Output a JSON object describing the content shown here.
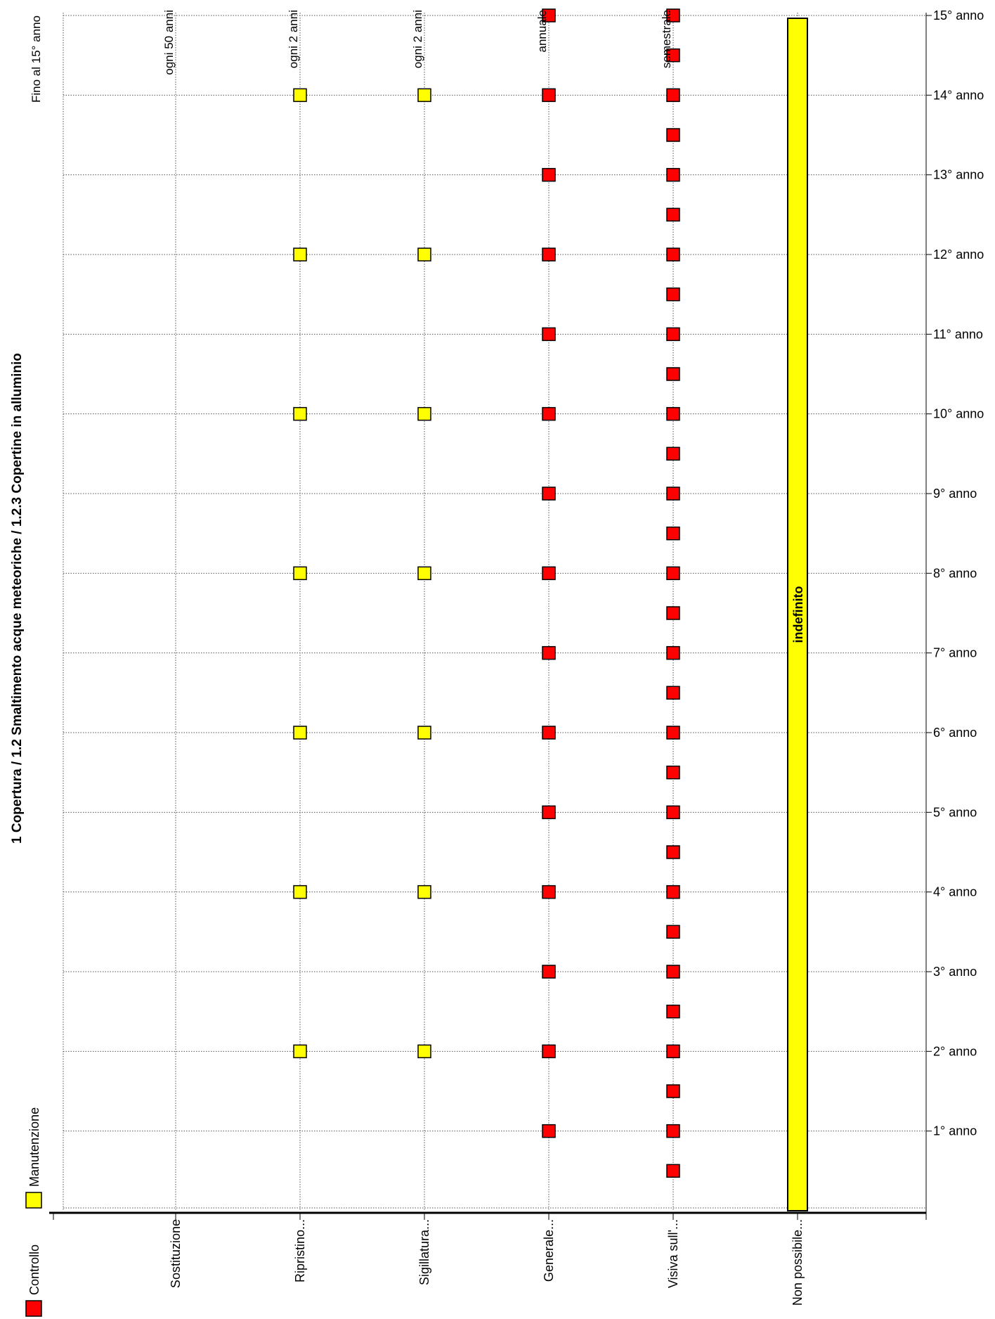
{
  "chart_data": {
    "type": "scatter",
    "orientation": "rotated-90",
    "title": "1 Copertura / 1.2 Smaltimento acque meteoriche / 1.2.3 Copertine in alluminio",
    "horizon_label": "Fino al 15° anno",
    "categories": [
      "Sostituzione",
      "Ripristino...",
      "Sigillatura...",
      "Generale...",
      "Visiva sull'...",
      "Non possibile..."
    ],
    "frequencies": [
      "ogni 50 anni",
      "ogni 2 anni",
      "ogni 2 anni",
      "annuale",
      "semestrale",
      ""
    ],
    "time_ticks": [
      "1° anno",
      "2° anno",
      "3° anno",
      "4° anno",
      "5° anno",
      "6° anno",
      "7° anno",
      "8° anno",
      "9° anno",
      "10° anno",
      "11° anno",
      "12° anno",
      "13° anno",
      "14° anno",
      "15° anno"
    ],
    "time_range": [
      0,
      15
    ],
    "series": [
      {
        "name": "Manutenzione",
        "color": "#ffff00",
        "kind": "marker",
        "points": [
          {
            "category": "Ripristino...",
            "years": [
              2,
              4,
              6,
              8,
              10,
              12,
              14
            ]
          },
          {
            "category": "Sigillatura...",
            "years": [
              2,
              4,
              6,
              8,
              10,
              12,
              14
            ]
          }
        ]
      },
      {
        "name": "Controllo",
        "color": "#ff0000",
        "kind": "marker",
        "points": [
          {
            "category": "Generale...",
            "years": [
              1,
              2,
              3,
              4,
              5,
              6,
              7,
              8,
              9,
              10,
              11,
              12,
              13,
              14,
              15
            ]
          },
          {
            "category": "Visiva sull'...",
            "years": [
              0.5,
              1,
              1.5,
              2,
              2.5,
              3,
              3.5,
              4,
              4.5,
              5,
              5.5,
              6,
              6.5,
              7,
              7.5,
              8,
              8.5,
              9,
              9.5,
              10,
              10.5,
              11,
              11.5,
              12,
              12.5,
              13,
              13.5,
              14,
              14.5,
              15
            ]
          }
        ]
      }
    ],
    "bars": [
      {
        "category": "Non possibile...",
        "start": 0,
        "end": 15,
        "color": "#ffff00",
        "label": "indefinito"
      }
    ],
    "legend": [
      {
        "name": "Controllo",
        "color": "#ff0000"
      },
      {
        "name": "Manutenzione",
        "color": "#ffff00"
      }
    ],
    "grid": true,
    "legend_position": "bottom-left"
  }
}
